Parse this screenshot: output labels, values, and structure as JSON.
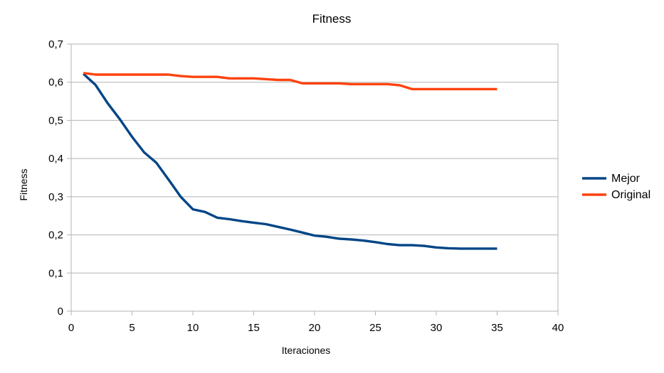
{
  "chart_data": {
    "type": "line",
    "title": "Fitness",
    "xlabel": "Iteraciones",
    "ylabel": "Fitness",
    "xlim": [
      0,
      40
    ],
    "ylim": [
      0,
      0.7
    ],
    "x_ticks": [
      "0",
      "5",
      "10",
      "15",
      "20",
      "25",
      "30",
      "35",
      "40"
    ],
    "y_ticks": [
      "0",
      "0,1",
      "0,2",
      "0,3",
      "0,4",
      "0,5",
      "0,6",
      "0,7"
    ],
    "grid": true,
    "legend_position": "right",
    "x": [
      1,
      2,
      3,
      4,
      5,
      6,
      7,
      8,
      9,
      10,
      11,
      12,
      13,
      14,
      15,
      16,
      17,
      18,
      19,
      20,
      21,
      22,
      23,
      24,
      25,
      26,
      27,
      28,
      29,
      30,
      31,
      32,
      33,
      34,
      35
    ],
    "series": [
      {
        "name": "Mejor",
        "color": "#004586",
        "values": [
          0.622,
          0.593,
          0.545,
          0.503,
          0.457,
          0.416,
          0.389,
          0.345,
          0.3,
          0.267,
          0.26,
          0.245,
          0.241,
          0.236,
          0.232,
          0.228,
          0.221,
          0.214,
          0.206,
          0.198,
          0.195,
          0.19,
          0.188,
          0.185,
          0.181,
          0.176,
          0.173,
          0.173,
          0.171,
          0.167,
          0.165,
          0.164,
          0.164,
          0.164,
          0.164
        ]
      },
      {
        "name": "Original",
        "color": "#ff420e",
        "values": [
          0.624,
          0.62,
          0.62,
          0.62,
          0.62,
          0.62,
          0.62,
          0.62,
          0.616,
          0.614,
          0.614,
          0.614,
          0.61,
          0.61,
          0.61,
          0.608,
          0.606,
          0.606,
          0.597,
          0.597,
          0.597,
          0.597,
          0.595,
          0.595,
          0.595,
          0.595,
          0.592,
          0.582,
          0.582,
          0.582,
          0.582,
          0.582,
          0.582,
          0.582,
          0.582
        ]
      }
    ]
  }
}
